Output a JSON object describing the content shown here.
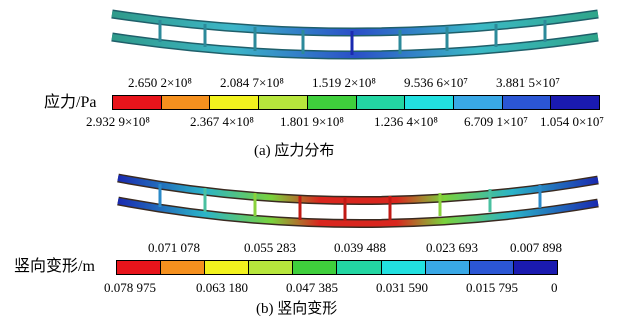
{
  "panel_a": {
    "scale_title": "应力/Pa",
    "top_labels": [
      "2.650 2×10⁸",
      "2.084 7×10⁸",
      "1.519 2×10⁸",
      "9.536 6×10⁷",
      "3.881 5×10⁷"
    ],
    "bottom_labels": [
      "2.932 9×10⁸",
      "2.367 4×10⁸",
      "1.801 9×10⁸",
      "1.236 4×10⁸",
      "6.709 1×10⁷",
      "1.054 0×10⁷"
    ],
    "colors": [
      "#e8141b",
      "#f5901e",
      "#f2f21e",
      "#b7e63c",
      "#3fcf3c",
      "#23d6a2",
      "#22e0e0",
      "#39a8e6",
      "#2b56d4",
      "#1a1ab0"
    ],
    "caption": "(a)   应力分布"
  },
  "panel_b": {
    "scale_title": "竖向变形/m",
    "top_labels": [
      "0.071 078",
      "0.055 283",
      "0.039 488",
      "0.023 693",
      "0.007 898"
    ],
    "bottom_labels": [
      "0.078 975",
      "0.063 180",
      "0.047 385",
      "0.031 590",
      "0.015 795",
      "0"
    ],
    "colors": [
      "#e8141b",
      "#f5901e",
      "#f2f21e",
      "#b7e63c",
      "#3fcf3c",
      "#23d6a2",
      "#22e0e0",
      "#39a8e6",
      "#2b56d4",
      "#1a1ab0"
    ],
    "caption": "(b)   竖向变形"
  }
}
